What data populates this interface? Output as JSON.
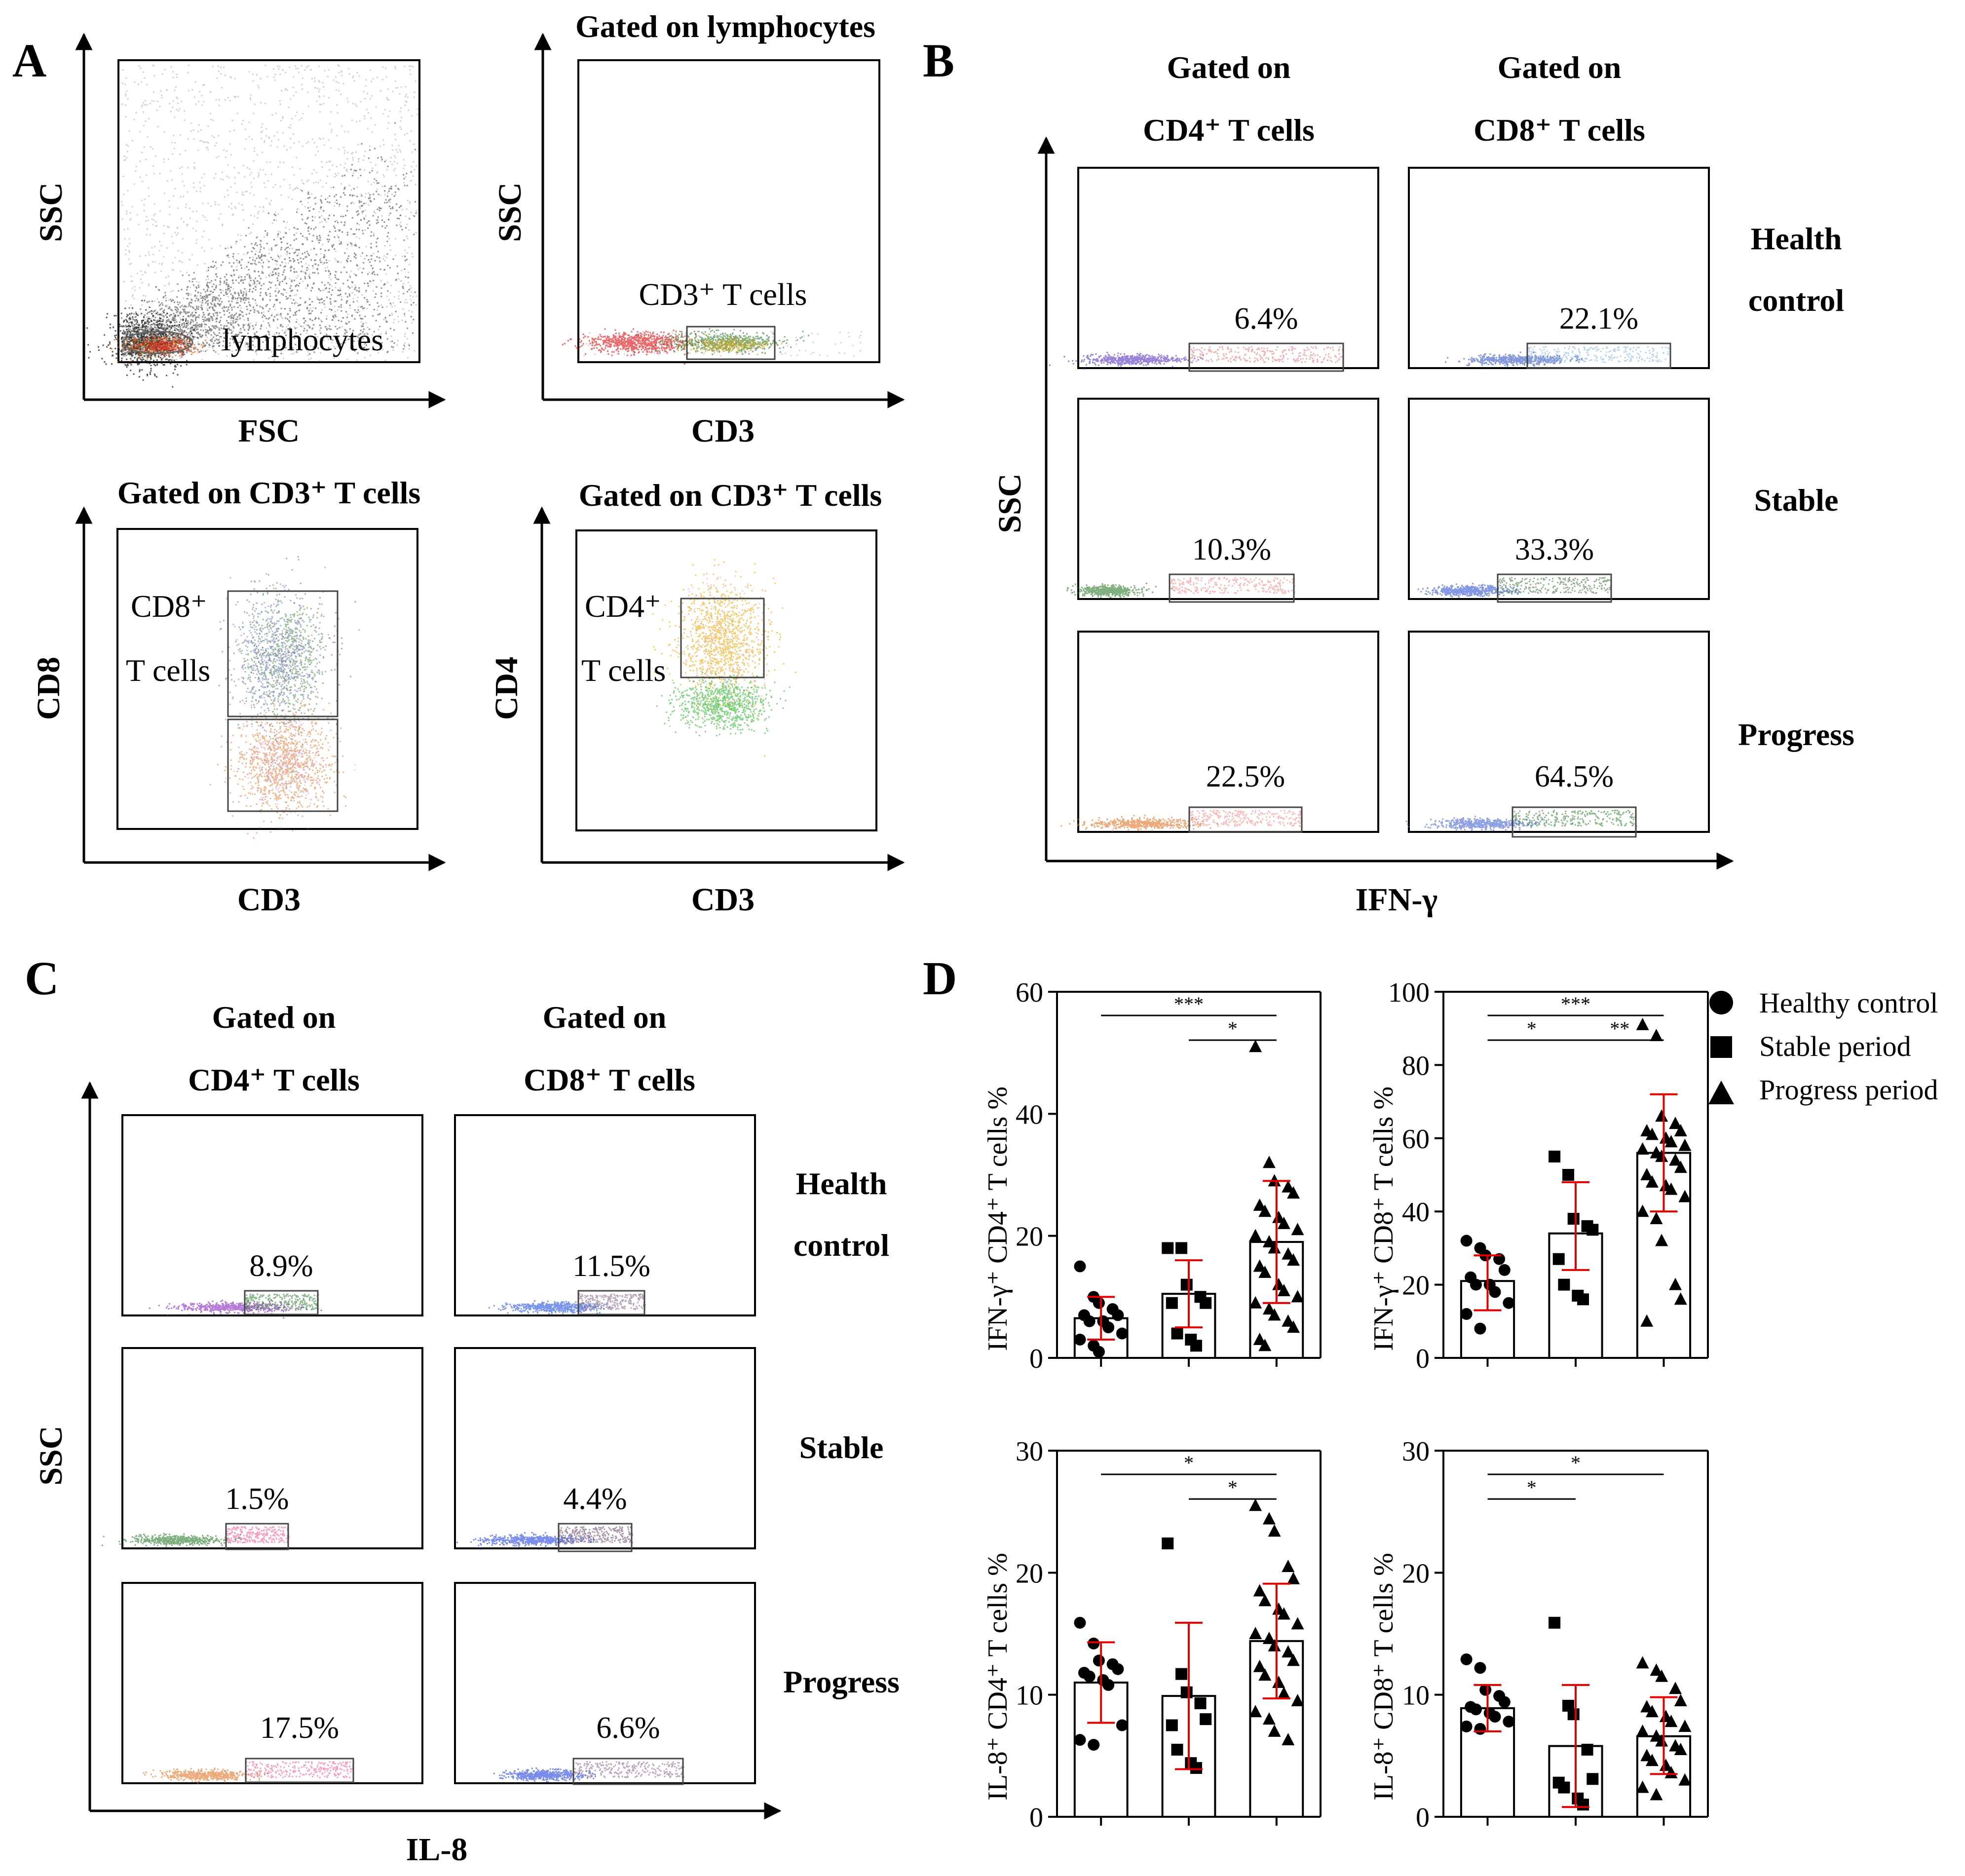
{
  "panel_letters": {
    "a": "A",
    "b": "B",
    "c": "C",
    "d": "D"
  },
  "panel_a": {
    "plots": [
      {
        "title": "",
        "xlabel": "FSC",
        "ylabel": "SSC",
        "gates": [
          "lymphocytes"
        ]
      },
      {
        "title": "Gated on lymphocytes",
        "xlabel": "CD3",
        "ylabel": "SSC",
        "gates": [
          "CD3⁺ T cells"
        ]
      },
      {
        "title": "Gated on CD3⁺ T cells",
        "xlabel": "CD3",
        "ylabel": "CD8",
        "gates": [
          "CD8⁺",
          "T cells"
        ]
      },
      {
        "title": "Gated on CD3⁺ T cells",
        "xlabel": "CD3",
        "ylabel": "CD4",
        "gates": [
          "CD4⁺",
          "T cells"
        ]
      }
    ]
  },
  "panel_b": {
    "col_headers": [
      [
        "Gated on",
        "CD4⁺ T cells"
      ],
      [
        "Gated on",
        "CD8⁺ T cells"
      ]
    ],
    "row_labels": [
      [
        "Health",
        "control"
      ],
      [
        "Stable"
      ],
      [
        "Progress"
      ]
    ],
    "xlabel": "IFN-γ",
    "ylabel": "SSC",
    "values": [
      [
        "6.4%",
        "22.1%"
      ],
      [
        "10.3%",
        "33.3%"
      ],
      [
        "22.5%",
        "64.5%"
      ]
    ]
  },
  "panel_c": {
    "col_headers": [
      [
        "Gated on",
        "CD4⁺ T cells"
      ],
      [
        "Gated on",
        "CD8⁺ T cells"
      ]
    ],
    "row_labels": [
      [
        "Health",
        "control"
      ],
      [
        "Stable"
      ],
      [
        "Progress"
      ]
    ],
    "xlabel": "IL-8",
    "ylabel": "SSC",
    "values": [
      [
        "8.9%",
        "11.5%"
      ],
      [
        "1.5%",
        "4.4%"
      ],
      [
        "17.5%",
        "6.6%"
      ]
    ]
  },
  "legend": {
    "items": [
      "Healthy control",
      "Stable period",
      "Progress period"
    ]
  },
  "colors": {
    "error": "#e00000",
    "ink": "#000000"
  },
  "chart_data": [
    {
      "type": "bar",
      "ylabel": "IFN-γ⁺ CD4⁺ T cells %",
      "ylim": [
        0,
        60
      ],
      "yticks": [
        0,
        20,
        40,
        60
      ],
      "categories": [
        "Healthy control",
        "Stable period",
        "Progress period"
      ],
      "means": [
        6.5,
        10.5,
        19
      ],
      "sd_low": [
        3,
        5,
        9
      ],
      "sd_high": [
        10,
        16,
        29
      ],
      "points": [
        [
          15,
          10,
          9,
          8,
          7,
          7,
          6,
          6,
          5,
          4,
          3,
          2,
          1
        ],
        [
          18,
          18,
          12,
          10,
          9,
          9,
          4,
          3,
          2
        ],
        [
          51,
          32,
          29,
          28,
          27,
          25,
          24,
          23,
          22,
          21,
          20,
          19,
          18,
          17,
          16,
          15,
          14,
          12,
          11,
          10,
          9,
          8,
          7,
          6,
          5,
          3,
          2
        ]
      ],
      "sig": [
        {
          "from": 0,
          "to": 2,
          "label": "***"
        },
        {
          "from": 1,
          "to": 2,
          "label": "*"
        }
      ]
    },
    {
      "type": "bar",
      "ylabel": "IFN-γ⁺ CD8⁺ T cells %",
      "ylim": [
        0,
        100
      ],
      "yticks": [
        0,
        20,
        40,
        60,
        80,
        100
      ],
      "categories": [
        "Healthy control",
        "Stable period",
        "Progress period"
      ],
      "means": [
        21,
        34,
        56
      ],
      "sd_low": [
        13,
        24,
        40
      ],
      "sd_high": [
        28,
        48,
        72
      ],
      "points": [
        [
          32,
          30,
          28,
          27,
          24,
          22,
          20,
          20,
          18,
          15,
          12,
          8
        ],
        [
          55,
          50,
          38,
          36,
          35,
          27,
          20,
          17,
          16
        ],
        [
          91,
          88,
          66,
          64,
          62,
          62,
          61,
          60,
          59,
          58,
          57,
          56,
          55,
          54,
          52,
          50,
          48,
          47,
          46,
          44,
          40,
          38,
          32,
          20,
          16,
          10
        ]
      ],
      "sig": [
        {
          "from": 0,
          "to": 2,
          "label": "***"
        },
        {
          "from": 0,
          "to": 1,
          "label": "*"
        },
        {
          "from": 1,
          "to": 2,
          "label": "**"
        }
      ]
    },
    {
      "type": "bar",
      "ylabel": "IL-8⁺ CD4⁺ T cells %",
      "ylim": [
        0,
        30
      ],
      "yticks": [
        0,
        10,
        20,
        30
      ],
      "categories": [
        "Healthy control",
        "Stable period",
        "Progress period"
      ],
      "means": [
        11,
        9.9,
        14.4
      ],
      "sd_low": [
        7.7,
        3.9,
        9.7
      ],
      "sd_high": [
        14.3,
        15.9,
        19.1
      ],
      "points": [
        [
          15.9,
          14.2,
          12.8,
          12.5,
          12.1,
          11.8,
          11.5,
          11.2,
          10.8,
          7.5,
          6.3,
          5.9
        ],
        [
          22.4,
          11.7,
          10.2,
          9.3,
          8.0,
          7.5,
          5.5,
          4.4,
          4.0
        ],
        [
          25.5,
          24.4,
          23.4,
          20.5,
          19.5,
          18.5,
          17.7,
          17.0,
          16.6,
          15.8,
          15.0,
          14.6,
          14.0,
          13.5,
          12.8,
          12.3,
          11.6,
          11.0,
          10.1,
          9.5,
          8.6,
          8.0,
          7.0,
          6.3
        ]
      ],
      "sig": [
        {
          "from": 0,
          "to": 2,
          "label": "*"
        },
        {
          "from": 1,
          "to": 2,
          "label": "*"
        }
      ]
    },
    {
      "type": "bar",
      "ylabel": "IL-8⁺ CD8⁺ T cells %",
      "ylim": [
        0,
        30
      ],
      "yticks": [
        0,
        10,
        20,
        30
      ],
      "categories": [
        "Healthy control",
        "Stable period",
        "Progress period"
      ],
      "means": [
        8.9,
        5.8,
        6.6
      ],
      "sd_low": [
        7.0,
        0.8,
        3.5
      ],
      "sd_high": [
        10.8,
        10.8,
        9.8
      ],
      "points": [
        [
          12.9,
          12.2,
          10.4,
          9.9,
          9.4,
          9.0,
          8.8,
          8.5,
          8.2,
          7.8,
          7.4,
          7.2
        ],
        [
          15.9,
          9.1,
          8.4,
          5.5,
          3.1,
          2.8,
          2.4,
          1.5,
          1.0
        ],
        [
          12.6,
          12.0,
          11.5,
          10.5,
          9.5,
          9.0,
          8.6,
          8.2,
          7.8,
          7.4,
          7.0,
          6.6,
          6.2,
          5.8,
          5.5,
          5.0,
          4.6,
          4.2,
          3.6,
          3.0,
          2.4,
          1.8
        ]
      ],
      "sig": [
        {
          "from": 0,
          "to": 1,
          "label": "*"
        },
        {
          "from": 0,
          "to": 2,
          "label": "*"
        }
      ]
    }
  ]
}
